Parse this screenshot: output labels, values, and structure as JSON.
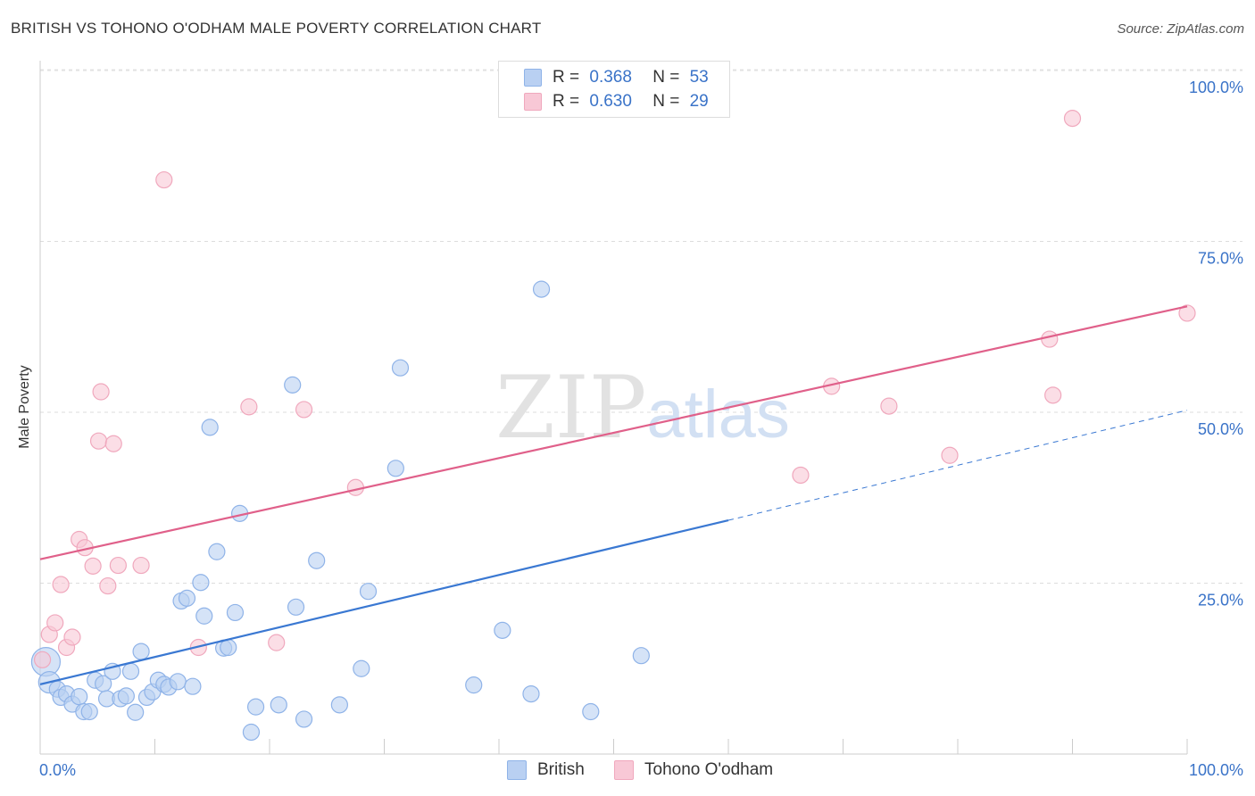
{
  "chart_data": {
    "type": "scatter",
    "title": "BRITISH VS TOHONO O'ODHAM MALE POVERTY CORRELATION CHART",
    "source": "Source: ZipAtlas.com",
    "xlabel": "",
    "ylabel": "Male Poverty",
    "xlim": [
      0,
      100
    ],
    "ylim": [
      0,
      100
    ],
    "x_tick_labels": [
      "0.0%",
      "100.0%"
    ],
    "y_tick_labels": [
      "100.0%",
      "75.0%",
      "50.0%",
      "25.0%"
    ],
    "y_ticks": [
      100,
      75,
      50,
      25
    ],
    "watermark": "ZIPatlas",
    "legend": {
      "items": [
        {
          "series": "British",
          "r_label": "R =",
          "r_value": "0.368",
          "n_label": "N =",
          "n_value": "53"
        },
        {
          "series": "Tohono O'odham",
          "r_label": "R =",
          "r_value": "0.630",
          "n_label": "N =",
          "n_value": "29"
        }
      ]
    },
    "series": [
      {
        "name": "British",
        "color": "#8fb3e8",
        "fill": "#b9d0f2",
        "line_color": "#3a78d2",
        "trend": {
          "x0": 0,
          "y0": 10.2,
          "x1": 60,
          "y1": 34.2,
          "x_dash_end": 100,
          "y_dash_end": 50.3
        },
        "points": [
          [
            0.5,
            13.5,
            16
          ],
          [
            0.8,
            10.5,
            12
          ],
          [
            1.5,
            9.5,
            9
          ],
          [
            1.8,
            8.3,
            9
          ],
          [
            2.3,
            8.8,
            9
          ],
          [
            2.8,
            7.3,
            9
          ],
          [
            3.4,
            8.4,
            9
          ],
          [
            3.8,
            6.2,
            9
          ],
          [
            4.3,
            6.2,
            9
          ],
          [
            4.8,
            10.8,
            9
          ],
          [
            5.5,
            10.3,
            9
          ],
          [
            5.8,
            8.1,
            9
          ],
          [
            6.3,
            12.1,
            9
          ],
          [
            7.0,
            8.1,
            9
          ],
          [
            7.5,
            8.5,
            9
          ],
          [
            7.9,
            12.1,
            9
          ],
          [
            8.3,
            6.1,
            9
          ],
          [
            8.8,
            15.0,
            9
          ],
          [
            9.3,
            8.3,
            9
          ],
          [
            9.8,
            9.1,
            9
          ],
          [
            10.3,
            10.8,
            9
          ],
          [
            10.8,
            10.2,
            9
          ],
          [
            11.2,
            9.8,
            9
          ],
          [
            12.0,
            10.6,
            9
          ],
          [
            12.3,
            22.4,
            9
          ],
          [
            12.8,
            22.8,
            9
          ],
          [
            13.3,
            9.9,
            9
          ],
          [
            14.0,
            25.1,
            9
          ],
          [
            14.3,
            20.2,
            9
          ],
          [
            14.8,
            47.8,
            9
          ],
          [
            15.4,
            29.6,
            9
          ],
          [
            16.0,
            15.5,
            9
          ],
          [
            16.4,
            15.6,
            9
          ],
          [
            17.0,
            20.7,
            9
          ],
          [
            17.4,
            35.2,
            9
          ],
          [
            18.4,
            3.2,
            9
          ],
          [
            18.8,
            6.9,
            9
          ],
          [
            20.8,
            7.2,
            9
          ],
          [
            22.0,
            54.0,
            9
          ],
          [
            22.3,
            21.5,
            9
          ],
          [
            23.0,
            5.1,
            9
          ],
          [
            24.1,
            28.3,
            9
          ],
          [
            26.1,
            7.2,
            9
          ],
          [
            28.0,
            12.5,
            9
          ],
          [
            28.6,
            23.8,
            9
          ],
          [
            31.0,
            41.8,
            9
          ],
          [
            31.4,
            56.5,
            9
          ],
          [
            37.8,
            10.1,
            9
          ],
          [
            40.3,
            18.1,
            9
          ],
          [
            42.8,
            8.8,
            9
          ],
          [
            43.7,
            68.0,
            9
          ],
          [
            48.0,
            6.2,
            9
          ],
          [
            52.4,
            14.4,
            9
          ]
        ]
      },
      {
        "name": "Tohono O'odham",
        "color": "#f0a8bd",
        "fill": "#f8c8d6",
        "line_color": "#e0608a",
        "trend": {
          "x0": 0,
          "y0": 28.5,
          "x1": 100,
          "y1": 65.5
        },
        "points": [
          [
            0.2,
            13.8,
            9
          ],
          [
            0.8,
            17.5,
            9
          ],
          [
            1.3,
            19.2,
            9
          ],
          [
            1.8,
            24.8,
            9
          ],
          [
            2.3,
            15.6,
            9
          ],
          [
            2.8,
            17.1,
            9
          ],
          [
            3.4,
            31.4,
            9
          ],
          [
            3.9,
            30.2,
            9
          ],
          [
            4.6,
            27.5,
            9
          ],
          [
            5.1,
            45.8,
            9
          ],
          [
            5.3,
            53.0,
            9
          ],
          [
            5.9,
            24.6,
            9
          ],
          [
            6.4,
            45.4,
            9
          ],
          [
            6.8,
            27.6,
            9
          ],
          [
            8.8,
            27.6,
            9
          ],
          [
            10.8,
            84.0,
            9
          ],
          [
            13.8,
            15.6,
            9
          ],
          [
            18.2,
            50.8,
            9
          ],
          [
            20.6,
            16.3,
            9
          ],
          [
            23.0,
            50.4,
            9
          ],
          [
            27.5,
            39.0,
            9
          ],
          [
            66.3,
            40.8,
            9
          ],
          [
            69.0,
            53.8,
            9
          ],
          [
            74.0,
            50.9,
            9
          ],
          [
            79.3,
            43.7,
            9
          ],
          [
            88.0,
            60.7,
            9
          ],
          [
            88.3,
            52.5,
            9
          ],
          [
            90.0,
            93.0,
            9
          ],
          [
            100.0,
            64.5,
            9
          ]
        ]
      }
    ]
  }
}
